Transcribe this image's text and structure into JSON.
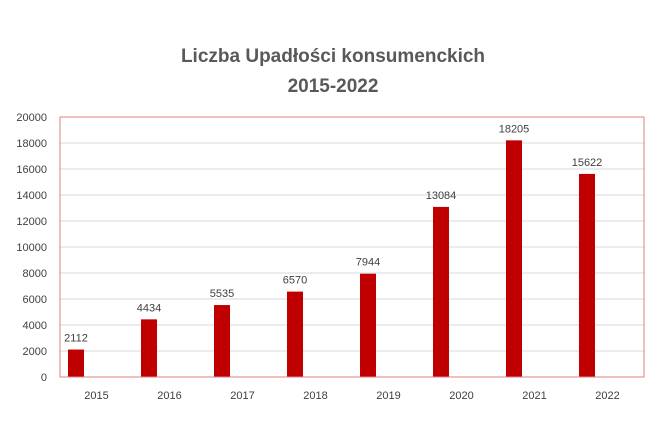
{
  "chart_data": {
    "type": "bar",
    "title": "Liczba Upadłości konsumenckich",
    "subtitle": "2015-2022",
    "categories": [
      "2015",
      "2016",
      "2017",
      "2018",
      "2019",
      "2020",
      "2021",
      "2022"
    ],
    "series": [
      {
        "values": [
          2112,
          4434,
          5535,
          6570,
          7944,
          13084,
          18205,
          15622
        ]
      }
    ],
    "data_labels": [
      "2112",
      "4434",
      "5535",
      "6570",
      "7944",
      "13084",
      "18205",
      "15622"
    ],
    "y_ticks": [
      "0",
      "2000",
      "4000",
      "6000",
      "8000",
      "10000",
      "12000",
      "14000",
      "16000",
      "18000",
      "20000"
    ],
    "ylim": [
      0,
      20000
    ],
    "grid": true,
    "legend": "none",
    "colors": {
      "bar": "#c00000",
      "plot_border": "#e08080",
      "grid": "#d9d9d9"
    }
  }
}
